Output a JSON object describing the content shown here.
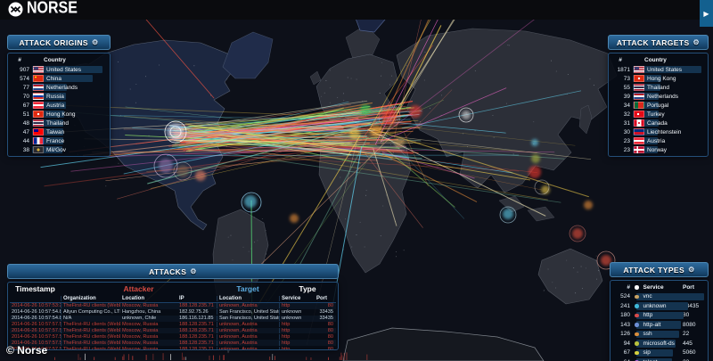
{
  "brand": {
    "name": "NORSE"
  },
  "icons": {
    "gear": "⚙",
    "play": "▶",
    "dot_header": "●"
  },
  "copyright": "© Norse",
  "colors": {
    "panel_border": "#244f79",
    "header_accent": "#2e6b9d",
    "attacker_label": "#d84b42",
    "target_label": "#5dade2",
    "tab_blue": "#13608f"
  },
  "panels": {
    "origins": {
      "title": "ATTACK ORIGINS",
      "columns": {
        "count": "#",
        "country": "Country"
      },
      "rows": [
        {
          "count": "907",
          "flag": "us",
          "country": "United States"
        },
        {
          "count": "574",
          "flag": "cn",
          "country": "China"
        },
        {
          "count": "77",
          "flag": "nl",
          "country": "Netherlands"
        },
        {
          "count": "70",
          "flag": "ru",
          "country": "Russia"
        },
        {
          "count": "67",
          "flag": "at",
          "country": "Austria"
        },
        {
          "count": "51",
          "flag": "hk",
          "country": "Hong Kong"
        },
        {
          "count": "48",
          "flag": "th",
          "country": "Thailand"
        },
        {
          "count": "47",
          "flag": "tw",
          "country": "Taiwan"
        },
        {
          "count": "44",
          "flag": "fr",
          "country": "France"
        },
        {
          "count": "38",
          "flag": "milgov",
          "country": "Mil/Gov"
        }
      ]
    },
    "targets": {
      "title": "ATTACK TARGETS",
      "columns": {
        "count": "#",
        "country": "Country"
      },
      "rows": [
        {
          "count": "1871",
          "flag": "us",
          "country": "United States"
        },
        {
          "count": "73",
          "flag": "hk",
          "country": "Hong Kong"
        },
        {
          "count": "55",
          "flag": "th",
          "country": "Thailand"
        },
        {
          "count": "39",
          "flag": "nl",
          "country": "Netherlands"
        },
        {
          "count": "34",
          "flag": "pt",
          "country": "Portugal"
        },
        {
          "count": "32",
          "flag": "tr",
          "country": "Turkey"
        },
        {
          "count": "31",
          "flag": "ca",
          "country": "Canada"
        },
        {
          "count": "30",
          "flag": "li",
          "country": "Liechtenstein"
        },
        {
          "count": "23",
          "flag": "at",
          "country": "Austria"
        },
        {
          "count": "23",
          "flag": "no",
          "country": "Norway"
        }
      ]
    },
    "attacks": {
      "title": "ATTACKS",
      "group_headers": {
        "timestamp": "Timestamp",
        "attacker": "Attacker",
        "target": "Target",
        "type": "Type"
      },
      "columns": {
        "organization": "Organization",
        "attacker_location": "Location",
        "ip": "IP",
        "target_location": "Location",
        "service": "Service",
        "port": "Port"
      },
      "rows": [
        {
          "timestamp": "2014-06-26 10:57:53:23",
          "organization": "TheFirst-RU clients (WebDC",
          "attacker_location": "Moscow, Russia",
          "ip": "188.128.235.71",
          "target_location": "unknown, Austria",
          "service": "http",
          "port": "80",
          "highlight": "red"
        },
        {
          "timestamp": "2014-06-26 10:57:54.85",
          "organization": "Aliyun Computing Co., LTD",
          "attacker_location": "Hangzhou, China",
          "ip": "182.92.75.26",
          "target_location": "San Francisco, United States",
          "service": "unknown",
          "port": "33435",
          "highlight": "normal"
        },
        {
          "timestamp": "2014-06-26 10:57:54.86",
          "organization": "N/A",
          "attacker_location": "unknown, Chile",
          "ip": "186.116.121.85",
          "target_location": "San Francisco, United States",
          "service": "unknown",
          "port": "33435",
          "highlight": "normal"
        },
        {
          "timestamp": "2014-06-26 10:57:57.52",
          "organization": "TheFirst-RU clients (WebDC",
          "attacker_location": "Moscow, Russia",
          "ip": "188.128.235.71",
          "target_location": "unknown, Austria",
          "service": "http",
          "port": "80",
          "highlight": "red"
        },
        {
          "timestamp": "2014-06-26 10:57:57.53",
          "organization": "TheFirst-RU clients (WebDC",
          "attacker_location": "Moscow, Russia",
          "ip": "188.128.235.71",
          "target_location": "unknown, Austria",
          "service": "http",
          "port": "80",
          "highlight": "red"
        },
        {
          "timestamp": "2014-06-26 10:57:57.53",
          "organization": "TheFirst-RU clients (WebDC",
          "attacker_location": "Moscow, Russia",
          "ip": "188.128.235.71",
          "target_location": "unknown, Austria",
          "service": "http",
          "port": "80",
          "highlight": "red"
        },
        {
          "timestamp": "2014-06-26 10:57:57.54",
          "organization": "TheFirst-RU clients (WebDC",
          "attacker_location": "Moscow, Russia",
          "ip": "188.128.235.71",
          "target_location": "unknown, Austria",
          "service": "http",
          "port": "80",
          "highlight": "red"
        },
        {
          "timestamp": "2014-06-26 10:57:57.55",
          "organization": "TheFirst-RU clients (WebDC",
          "attacker_location": "Moscow, Russia",
          "ip": "188.128.235.71",
          "target_location": "unknown, Austria",
          "service": "http",
          "port": "80",
          "highlight": "red"
        }
      ]
    },
    "types": {
      "title": "ATTACK TYPES",
      "columns": {
        "count": "#",
        "service": "Service",
        "port": "Port"
      },
      "rows": [
        {
          "count": "524",
          "service": "vnc",
          "port": "5900",
          "color": "#c8a263"
        },
        {
          "count": "241",
          "service": "unknown",
          "port": "33435",
          "color": "#3fb8d8"
        },
        {
          "count": "180",
          "service": "http",
          "port": "80",
          "color": "#d84b4b"
        },
        {
          "count": "143",
          "service": "http-alt",
          "port": "8080",
          "color": "#6e8fd6"
        },
        {
          "count": "126",
          "service": "ssh",
          "port": "22",
          "color": "#d98d3c"
        },
        {
          "count": "94",
          "service": "microsoft-ds",
          "port": "445",
          "color": "#b8c23e"
        },
        {
          "count": "67",
          "service": "sip",
          "port": "5060",
          "color": "#d6d13f"
        },
        {
          "count": "64",
          "service": "telnet",
          "port": "23",
          "color": "#a963d6"
        }
      ]
    }
  }
}
